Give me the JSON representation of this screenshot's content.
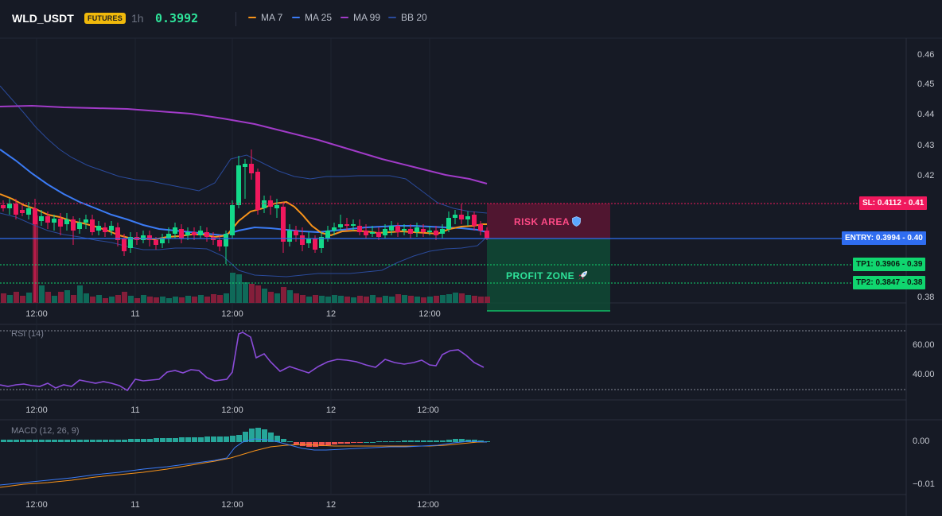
{
  "header": {
    "symbol": "WLD_USDT",
    "badge": "FUTURES",
    "interval": "1h",
    "price": "0.3992",
    "legend": [
      {
        "label": "MA 7",
        "color": "#f7931a"
      },
      {
        "label": "MA 25",
        "color": "#3b7bf5"
      },
      {
        "label": "MA 99",
        "color": "#a13bc8"
      },
      {
        "label": "BB 20",
        "color": "#2a4a9a"
      }
    ]
  },
  "main_chart": {
    "y_ticks": [
      "0.46",
      "0.45",
      "0.44",
      "0.43",
      "0.42",
      "0.41",
      "0.40",
      "0.39",
      "0.38"
    ],
    "x_ticks": [
      "12:00",
      "11",
      "12:00",
      "12",
      "12:00"
    ],
    "levels": {
      "sl": {
        "label": "SL: 0.4112",
        "tick": "0.41",
        "color": "#f0185d"
      },
      "entry": {
        "label": "ENTRY: 0.3994",
        "tick": "0.40",
        "color": "#2f6df0"
      },
      "tp1": {
        "label": "TP1: 0.3906",
        "tick": "0.39",
        "color": "#10d66f"
      },
      "tp2": {
        "label": "TP2: 0.3847",
        "tick": "0.38",
        "color": "#10d66f"
      }
    },
    "risk_zone_label": "RISK AREA",
    "risk_zone_icon": "shield-icon",
    "profit_zone_label": "PROFIT ZONE",
    "profit_zone_icon": "rocket-icon"
  },
  "rsi_pane": {
    "title": "RSI (14)",
    "y_ticks": [
      "60.00",
      "40.00"
    ],
    "x_ticks": [
      "12:00",
      "11",
      "12:00",
      "12",
      "12:00"
    ]
  },
  "macd_pane": {
    "title": "MACD (12, 26, 9)",
    "y_ticks": [
      "0.00",
      "−0.01"
    ],
    "x_ticks": [
      "12:00",
      "11",
      "12:00",
      "12",
      "12:00"
    ]
  },
  "colors": {
    "up": "#13d98a",
    "down": "#f0185d",
    "ma7": "#f7931a",
    "ma25": "#3b7bf5",
    "ma99": "#a13bc8",
    "bb": "#2a4a9a",
    "rsi": "#8a4bd8"
  }
}
